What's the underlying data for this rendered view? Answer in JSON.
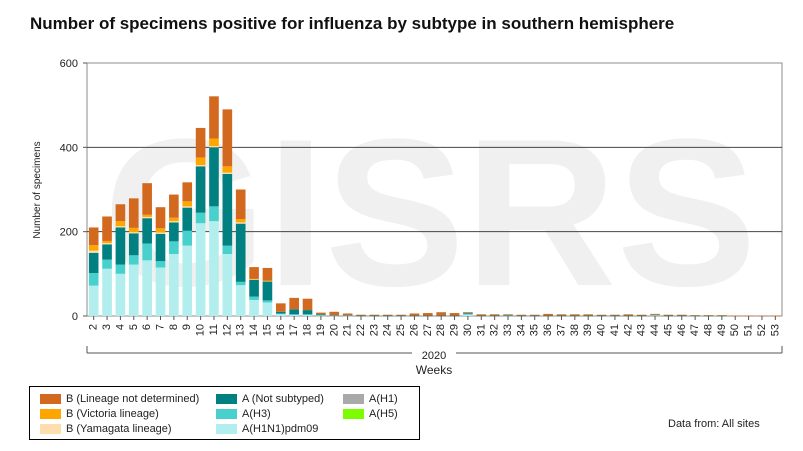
{
  "chart_data": {
    "type": "bar",
    "title": "Number of specimens positive for influenza by subtype in southern hemisphere",
    "xlabel": "Weeks",
    "ylabel": "Number of specimens",
    "year_label": "2020",
    "ylim": [
      0,
      600
    ],
    "yticks": [
      0,
      200,
      400,
      600
    ],
    "grid": true,
    "watermark": "GISRS",
    "stacked": true,
    "categories": [
      "2",
      "3",
      "4",
      "5",
      "6",
      "7",
      "8",
      "9",
      "10",
      "11",
      "12",
      "13",
      "14",
      "15",
      "16",
      "17",
      "18",
      "19",
      "20",
      "21",
      "22",
      "23",
      "24",
      "25",
      "26",
      "27",
      "28",
      "29",
      "30",
      "31",
      "32",
      "33",
      "34",
      "35",
      "36",
      "37",
      "38",
      "39",
      "40",
      "41",
      "42",
      "43",
      "44",
      "45",
      "46",
      "47",
      "48",
      "49",
      "50",
      "51",
      "52",
      "53"
    ],
    "series": [
      {
        "name": "A(H1N1)pdm09",
        "color": "#b2eeee",
        "values": [
          72,
          112,
          100,
          122,
          132,
          115,
          147,
          167,
          220,
          225,
          147,
          73,
          38,
          32,
          5,
          3,
          3,
          1,
          1,
          1,
          0,
          0,
          0,
          0,
          0,
          0,
          0,
          0,
          3,
          0,
          0,
          0,
          0,
          0,
          0,
          0,
          0,
          0,
          0,
          0,
          0,
          0,
          2,
          0,
          0,
          0,
          0,
          0,
          0,
          0,
          0,
          0
        ]
      },
      {
        "name": "A(H3)",
        "color": "#48d1cc",
        "values": [
          30,
          22,
          22,
          22,
          40,
          15,
          30,
          35,
          25,
          35,
          20,
          8,
          8,
          5,
          1,
          1,
          1,
          1,
          0,
          0,
          0,
          0,
          0,
          0,
          0,
          0,
          0,
          0,
          3,
          0,
          0,
          1,
          0,
          0,
          0,
          0,
          0,
          0,
          0,
          0,
          0,
          0,
          0,
          0,
          0,
          0,
          0,
          0,
          0,
          0,
          0,
          0
        ]
      },
      {
        "name": "A(Not subtyped)",
        "color": "#008080",
        "values": [
          48,
          36,
          88,
          52,
          60,
          65,
          45,
          55,
          110,
          140,
          170,
          138,
          40,
          45,
          4,
          12,
          10,
          2,
          1,
          1,
          1,
          1,
          1,
          1,
          1,
          1,
          1,
          1,
          1,
          1,
          1,
          1,
          1,
          1,
          1,
          1,
          1,
          1,
          1,
          1,
          1,
          1,
          1,
          1,
          1,
          1,
          1,
          1,
          0,
          0,
          0,
          0
        ]
      },
      {
        "name": "A(H1)",
        "color": "#a9a9a9",
        "values": [
          0,
          0,
          0,
          0,
          0,
          0,
          0,
          0,
          0,
          0,
          0,
          0,
          0,
          0,
          0,
          0,
          0,
          0,
          0,
          0,
          0,
          0,
          0,
          0,
          0,
          0,
          0,
          0,
          0,
          0,
          0,
          0,
          0,
          0,
          0,
          0,
          0,
          0,
          0,
          0,
          0,
          0,
          0,
          0,
          0,
          0,
          0,
          0,
          0,
          0,
          0,
          0
        ]
      },
      {
        "name": "A(H5)",
        "color": "#7cfc00",
        "values": [
          0,
          0,
          0,
          0,
          0,
          0,
          0,
          0,
          0,
          0,
          0,
          0,
          0,
          0,
          0,
          0,
          0,
          0,
          0,
          0,
          0,
          0,
          0,
          0,
          0,
          0,
          0,
          0,
          0,
          0,
          0,
          0,
          0,
          0,
          0,
          0,
          0,
          0,
          0,
          0,
          0,
          0,
          0,
          0,
          0,
          0,
          0,
          0,
          0,
          0,
          0,
          0
        ]
      },
      {
        "name": "B (Yamagata lineage)",
        "color": "#ffdead",
        "values": [
          5,
          3,
          3,
          3,
          3,
          3,
          3,
          3,
          3,
          3,
          3,
          3,
          1,
          1,
          0,
          0,
          0,
          0,
          0,
          0,
          0,
          0,
          0,
          0,
          0,
          0,
          0,
          0,
          0,
          0,
          0,
          0,
          0,
          0,
          0,
          0,
          0,
          0,
          0,
          0,
          0,
          0,
          0,
          0,
          0,
          0,
          0,
          0,
          0,
          0,
          0,
          0
        ]
      },
      {
        "name": "B (Victoria lineage)",
        "color": "#ffa500",
        "values": [
          13,
          5,
          12,
          10,
          5,
          10,
          8,
          12,
          18,
          18,
          15,
          8,
          1,
          1,
          0,
          0,
          0,
          0,
          0,
          0,
          0,
          0,
          0,
          0,
          0,
          0,
          0,
          0,
          0,
          0,
          0,
          0,
          0,
          0,
          0,
          0,
          0,
          0,
          0,
          0,
          0,
          0,
          0,
          0,
          0,
          0,
          0,
          0,
          0,
          0,
          0,
          0
        ]
      },
      {
        "name": "B (Lineage not determined)",
        "color": "#d2691e",
        "values": [
          42,
          58,
          40,
          70,
          75,
          50,
          55,
          45,
          70,
          100,
          135,
          70,
          28,
          30,
          20,
          27,
          27,
          4,
          8,
          4,
          2,
          2,
          2,
          2,
          5,
          6,
          8,
          6,
          2,
          3,
          3,
          2,
          2,
          2,
          4,
          3,
          3,
          3,
          2,
          2,
          3,
          2,
          2,
          2,
          2,
          1,
          1,
          1,
          1,
          1,
          1,
          1
        ]
      }
    ]
  },
  "legend": {
    "items": [
      {
        "label": "B (Lineage not determined)",
        "color": "#d2691e"
      },
      {
        "label": "A (Not subtyped)",
        "color": "#008080"
      },
      {
        "label": "A(H1)",
        "color": "#a9a9a9"
      },
      {
        "label": "B (Victoria lineage)",
        "color": "#ffa500"
      },
      {
        "label": "A(H3)",
        "color": "#48d1cc"
      },
      {
        "label": "A(H5)",
        "color": "#7cfc00"
      },
      {
        "label": "B (Yamagata lineage)",
        "color": "#ffdead"
      },
      {
        "label": "A(H1N1)pdm09",
        "color": "#b2eeee"
      }
    ]
  },
  "footer": {
    "data_source": "Data from: All sites"
  }
}
